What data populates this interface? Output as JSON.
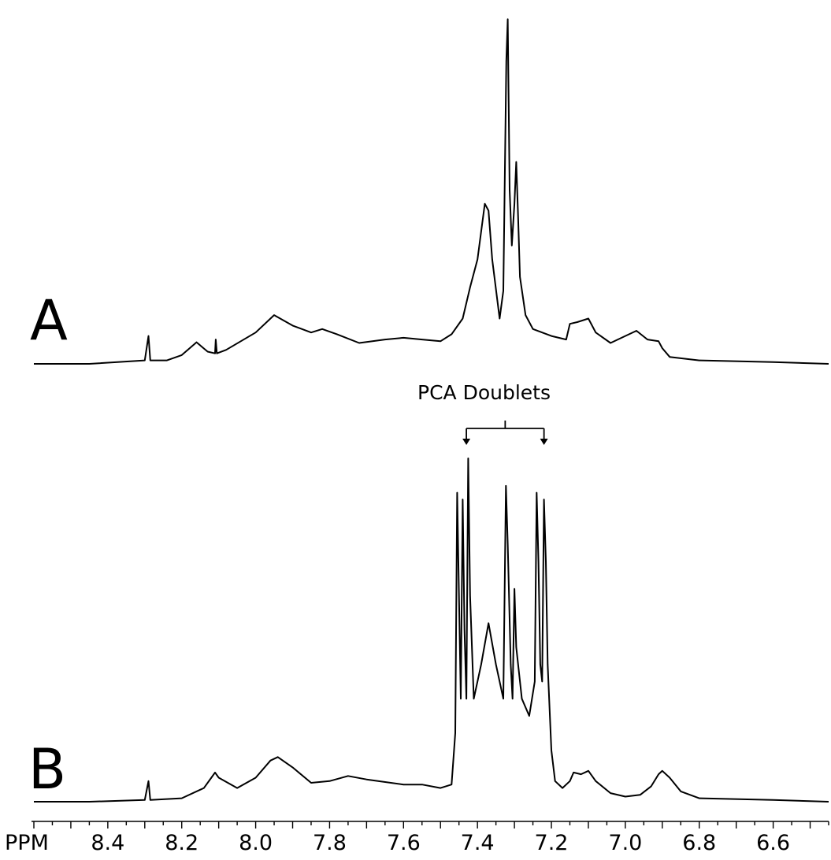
{
  "chart_data": [
    {
      "type": "line",
      "panel_label": "A",
      "x_reversed": true,
      "xlim": [
        8.6,
        6.45
      ],
      "series": [
        {
          "points": [
            [
              8.6,
              0.0
            ],
            [
              8.45,
              0.0
            ],
            [
              8.3,
              0.01
            ],
            [
              8.29,
              0.08
            ],
            [
              8.285,
              0.01
            ],
            [
              8.24,
              0.01
            ],
            [
              8.2,
              0.025
            ],
            [
              8.16,
              0.062
            ],
            [
              8.13,
              0.035
            ],
            [
              8.11,
              0.03
            ],
            [
              8.108,
              0.07
            ],
            [
              8.105,
              0.03
            ],
            [
              8.08,
              0.04
            ],
            [
              8.0,
              0.09
            ],
            [
              7.95,
              0.14
            ],
            [
              7.9,
              0.11
            ],
            [
              7.85,
              0.09
            ],
            [
              7.82,
              0.1
            ],
            [
              7.78,
              0.085
            ],
            [
              7.72,
              0.06
            ],
            [
              7.65,
              0.07
            ],
            [
              7.6,
              0.075
            ],
            [
              7.55,
              0.07
            ],
            [
              7.5,
              0.065
            ],
            [
              7.47,
              0.085
            ],
            [
              7.44,
              0.13
            ],
            [
              7.42,
              0.22
            ],
            [
              7.4,
              0.3
            ],
            [
              7.38,
              0.46
            ],
            [
              7.37,
              0.44
            ],
            [
              7.36,
              0.3
            ],
            [
              7.34,
              0.13
            ],
            [
              7.33,
              0.21
            ],
            [
              7.322,
              0.87
            ],
            [
              7.318,
              0.99
            ],
            [
              7.313,
              0.5
            ],
            [
              7.307,
              0.34
            ],
            [
              7.3,
              0.46
            ],
            [
              7.295,
              0.58
            ],
            [
              7.29,
              0.42
            ],
            [
              7.285,
              0.25
            ],
            [
              7.27,
              0.14
            ],
            [
              7.25,
              0.1
            ],
            [
              7.2,
              0.08
            ],
            [
              7.16,
              0.07
            ],
            [
              7.15,
              0.115
            ],
            [
              7.13,
              0.12
            ],
            [
              7.1,
              0.13
            ],
            [
              7.08,
              0.09
            ],
            [
              7.04,
              0.06
            ],
            [
              7.0,
              0.08
            ],
            [
              6.97,
              0.095
            ],
            [
              6.94,
              0.07
            ],
            [
              6.91,
              0.065
            ],
            [
              6.9,
              0.045
            ],
            [
              6.88,
              0.02
            ],
            [
              6.8,
              0.01
            ],
            [
              6.6,
              0.005
            ],
            [
              6.45,
              0.0
            ]
          ]
        }
      ]
    },
    {
      "type": "line",
      "panel_label": "B",
      "x_reversed": true,
      "xlim": [
        8.6,
        6.45
      ],
      "xlabel": "PPM",
      "xticks": [
        8.4,
        8.2,
        8.0,
        7.8,
        7.6,
        7.4,
        7.2,
        7.0,
        6.8,
        6.6
      ],
      "xtick_labels": [
        "8.4",
        "8.2",
        "8.0",
        "7.8",
        "7.6",
        "7.4",
        "7.2",
        "7.0",
        "6.8",
        "6.6"
      ],
      "annotation": {
        "text": "PCA Doublets",
        "targets": [
          7.43,
          7.22
        ]
      },
      "series": [
        {
          "points": [
            [
              8.6,
              0.0
            ],
            [
              8.45,
              0.0
            ],
            [
              8.3,
              0.005
            ],
            [
              8.29,
              0.06
            ],
            [
              8.285,
              0.005
            ],
            [
              8.2,
              0.01
            ],
            [
              8.14,
              0.04
            ],
            [
              8.12,
              0.07
            ],
            [
              8.11,
              0.085
            ],
            [
              8.1,
              0.07
            ],
            [
              8.05,
              0.04
            ],
            [
              8.0,
              0.07
            ],
            [
              7.96,
              0.12
            ],
            [
              7.94,
              0.13
            ],
            [
              7.9,
              0.1
            ],
            [
              7.85,
              0.055
            ],
            [
              7.8,
              0.06
            ],
            [
              7.75,
              0.075
            ],
            [
              7.7,
              0.065
            ],
            [
              7.6,
              0.05
            ],
            [
              7.55,
              0.05
            ],
            [
              7.5,
              0.04
            ],
            [
              7.47,
              0.05
            ],
            [
              7.46,
              0.2
            ],
            [
              7.455,
              0.9
            ],
            [
              7.45,
              0.6
            ],
            [
              7.445,
              0.3
            ],
            [
              7.44,
              0.88
            ],
            [
              7.435,
              0.5
            ],
            [
              7.43,
              0.3
            ],
            [
              7.425,
              1.0
            ],
            [
              7.42,
              0.6
            ],
            [
              7.41,
              0.3
            ],
            [
              7.39,
              0.4
            ],
            [
              7.37,
              0.52
            ],
            [
              7.35,
              0.4
            ],
            [
              7.33,
              0.3
            ],
            [
              7.323,
              0.92
            ],
            [
              7.318,
              0.75
            ],
            [
              7.31,
              0.4
            ],
            [
              7.305,
              0.3
            ],
            [
              7.3,
              0.62
            ],
            [
              7.295,
              0.45
            ],
            [
              7.28,
              0.3
            ],
            [
              7.26,
              0.25
            ],
            [
              7.245,
              0.35
            ],
            [
              7.24,
              0.9
            ],
            [
              7.235,
              0.7
            ],
            [
              7.23,
              0.4
            ],
            [
              7.225,
              0.35
            ],
            [
              7.22,
              0.88
            ],
            [
              7.215,
              0.7
            ],
            [
              7.21,
              0.4
            ],
            [
              7.2,
              0.15
            ],
            [
              7.19,
              0.06
            ],
            [
              7.17,
              0.04
            ],
            [
              7.15,
              0.06
            ],
            [
              7.14,
              0.085
            ],
            [
              7.12,
              0.08
            ],
            [
              7.1,
              0.09
            ],
            [
              7.08,
              0.06
            ],
            [
              7.04,
              0.025
            ],
            [
              7.0,
              0.015
            ],
            [
              6.96,
              0.02
            ],
            [
              6.93,
              0.045
            ],
            [
              6.91,
              0.08
            ],
            [
              6.9,
              0.09
            ],
            [
              6.88,
              0.07
            ],
            [
              6.85,
              0.03
            ],
            [
              6.8,
              0.01
            ],
            [
              6.6,
              0.005
            ],
            [
              6.45,
              0.0
            ]
          ]
        }
      ]
    }
  ]
}
